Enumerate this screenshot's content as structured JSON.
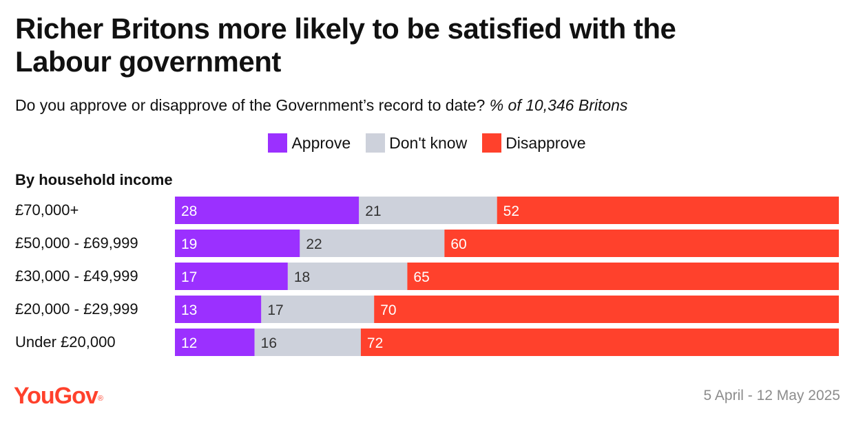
{
  "header": {
    "title": "Richer Britons more likely to be satisfied with the Labour government",
    "question": "Do you approve or disapprove of the Government’s record to date?",
    "sample_note": "% of 10,346 Britons"
  },
  "colors": {
    "approve": "#9b30ff",
    "dont_know": "#cdd1db",
    "disapprove": "#ff412c",
    "logo": "#ff412c"
  },
  "chart_data": {
    "type": "bar",
    "orientation": "horizontal",
    "stacked": true,
    "group_label": "By household income",
    "categories": [
      "£70,000+",
      "£50,000 - £69,999",
      "£30,000 - £49,999",
      "£20,000 - £29,999",
      "Under £20,000"
    ],
    "series": [
      {
        "name": "Approve",
        "color": "#9b30ff",
        "values": [
          28,
          19,
          17,
          13,
          12
        ]
      },
      {
        "name": "Don't know",
        "color": "#cdd1db",
        "values": [
          21,
          22,
          18,
          17,
          16
        ]
      },
      {
        "name": "Disapprove",
        "color": "#ff412c",
        "values": [
          52,
          60,
          65,
          70,
          72
        ]
      }
    ],
    "legend_position": "top-center",
    "grid": false
  },
  "footer": {
    "brand": "YouGov",
    "brand_mark": "®",
    "date_range": "5 April - 12 May 2025"
  }
}
